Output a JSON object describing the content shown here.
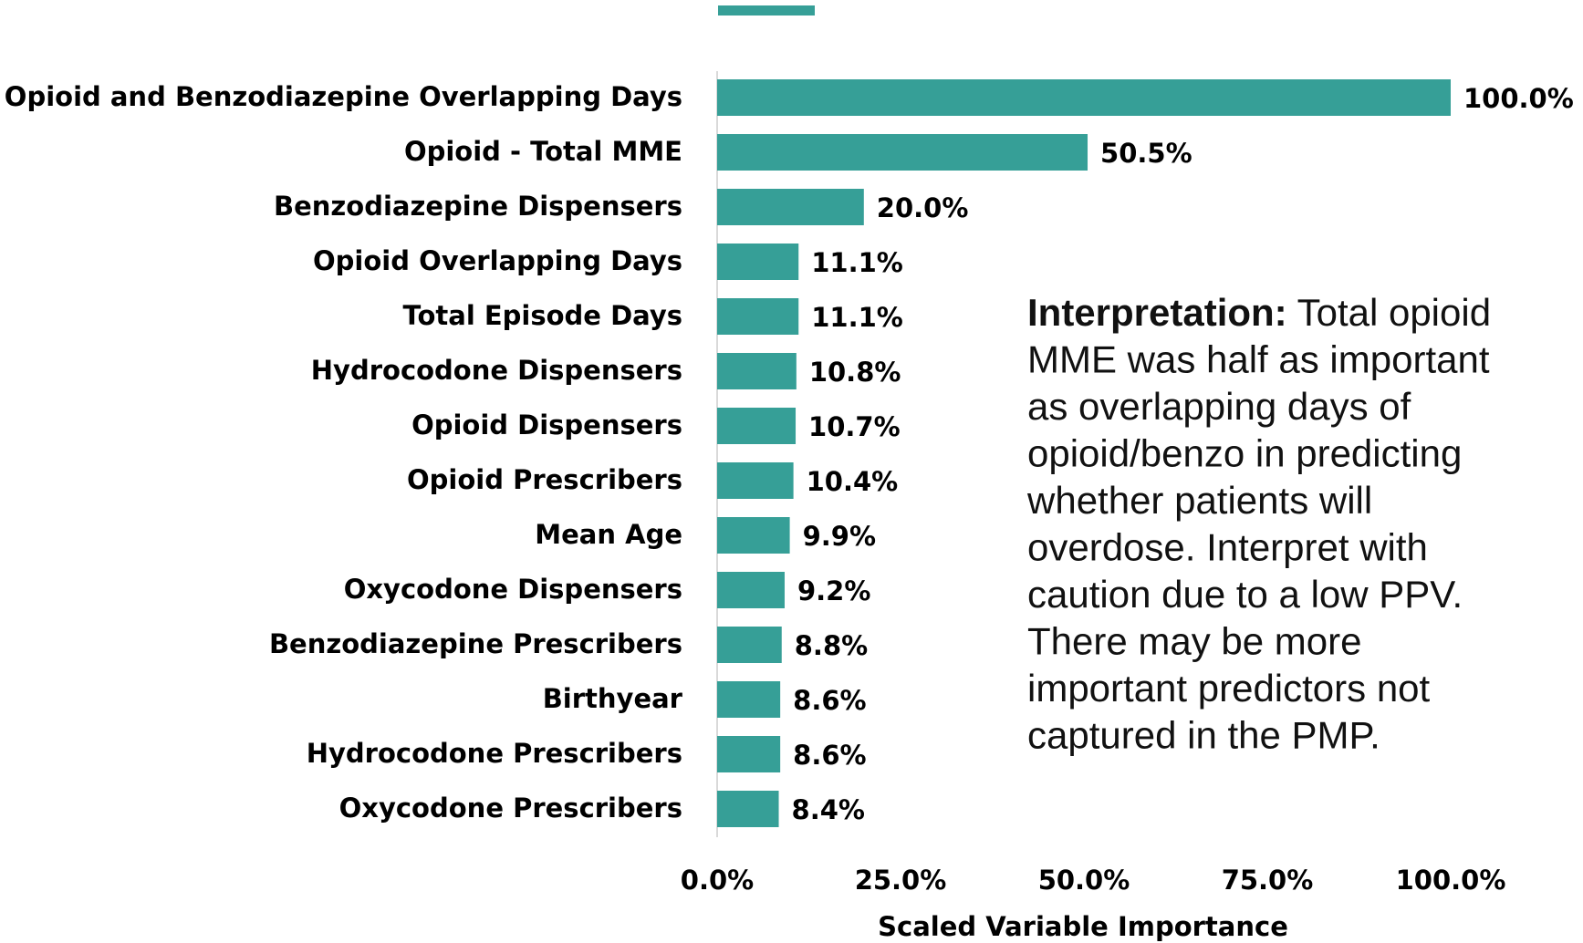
{
  "chart_data": {
    "type": "bar",
    "orientation": "horizontal",
    "color": "#369f97",
    "categories": [
      "Opioid and Benzodiazepine Overlapping Days",
      "Opioid - Total MME",
      "Benzodiazepine Dispensers",
      "Opioid Overlapping Days",
      "Total Episode Days",
      "Hydrocodone Dispensers",
      "Opioid Dispensers",
      "Opioid Prescribers",
      "Mean Age",
      "Oxycodone Dispensers",
      "Benzodiazepine Prescribers",
      "Birthyear",
      "Hydrocodone Prescribers",
      "Oxycodone Prescribers"
    ],
    "values": [
      100.0,
      50.5,
      20.0,
      11.1,
      11.1,
      10.8,
      10.7,
      10.4,
      9.9,
      9.2,
      8.8,
      8.6,
      8.6,
      8.4
    ],
    "value_labels": [
      "100.0%",
      "50.5%",
      "20.0%",
      "11.1%",
      "11.1%",
      "10.8%",
      "10.7%",
      "10.4%",
      "9.9%",
      "9.2%",
      "8.8%",
      "8.6%",
      "8.6%",
      "8.4%"
    ],
    "xlim": [
      0,
      100
    ],
    "xticks": [
      {
        "value": 0,
        "label": "0.0%"
      },
      {
        "value": 25,
        "label": "25.0%"
      },
      {
        "value": 50,
        "label": "50.0%"
      },
      {
        "value": 75,
        "label": "75.0%"
      },
      {
        "value": 100,
        "label": "100.0%"
      }
    ],
    "xlabel": "Scaled Variable Importance",
    "annotation": {
      "title": "Interpretation:",
      "lines": [
        " Total opioid",
        "MME was half as important",
        "as overlapping days of",
        "opioid/benzo in predicting",
        "whether patients will",
        "overdose. Interpret with",
        "caution due to a low PPV.",
        "There may be more",
        "important predictors not",
        "captured in the PMP."
      ]
    }
  }
}
